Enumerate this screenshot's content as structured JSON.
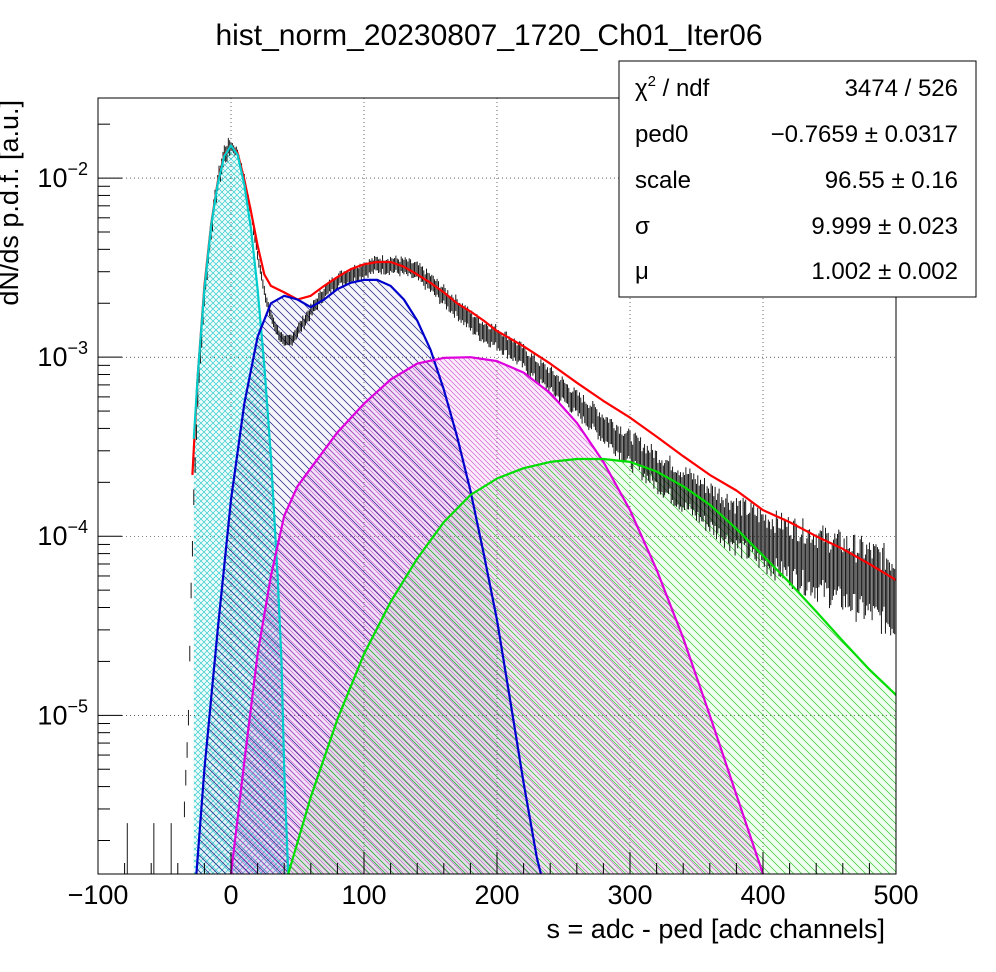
{
  "chart_data": {
    "type": "line",
    "title": "hist_norm_20230807_1720_Ch01_Iter06",
    "xlabel": "s = adc - ped [adc channels]",
    "ylabel": "dN/ds p.d.f. [a.u.]",
    "x_scale": "linear",
    "y_scale": "log",
    "xlim": [
      -100,
      500
    ],
    "ylim": [
      1.3e-06,
      0.028
    ],
    "grid": true,
    "x_ticks": [
      "−100",
      "0",
      "100",
      "200",
      "300",
      "400",
      "500"
    ],
    "y_ticks": [
      {
        "base": "10",
        "exp": "−5"
      },
      {
        "base": "10",
        "exp": "−4"
      },
      {
        "base": "10",
        "exp": "−3"
      },
      {
        "base": "10",
        "exp": "−2"
      }
    ],
    "stats_box": {
      "placement": "top-right",
      "rows": [
        {
          "label": "χ",
          "label_sup": "2",
          "label_tail": " / ndf",
          "value": "3474 / 526"
        },
        {
          "label": "ped0",
          "label_sup": "",
          "label_tail": "",
          "value": "−0.7659 ± 0.0317"
        },
        {
          "label": "scale",
          "label_sup": "",
          "label_tail": "",
          "value": "96.55 ± 0.16"
        },
        {
          "label": "σ",
          "label_sup": "",
          "label_tail": "",
          "value": "9.999 ± 0.023"
        },
        {
          "label": "μ",
          "label_sup": "",
          "label_tail": "",
          "value": "1.002 ± 0.002"
        }
      ]
    },
    "histogram": {
      "color": "#000000",
      "points": [
        [
          -35,
          3e-06
        ],
        [
          -32,
          1e-05
        ],
        [
          -30,
          5e-05
        ],
        [
          -28,
          0.00016
        ],
        [
          -25,
          0.0006
        ],
        [
          -20,
          0.0022
        ],
        [
          -15,
          0.0052
        ],
        [
          -10,
          0.0095
        ],
        [
          -5,
          0.0136
        ],
        [
          0,
          0.0152
        ],
        [
          5,
          0.0138
        ],
        [
          10,
          0.0098
        ],
        [
          15,
          0.0064
        ],
        [
          20,
          0.0038
        ],
        [
          25,
          0.0023
        ],
        [
          30,
          0.0017
        ],
        [
          35,
          0.0014
        ],
        [
          40,
          0.0012
        ],
        [
          45,
          0.00125
        ],
        [
          50,
          0.0014
        ],
        [
          60,
          0.0018
        ],
        [
          70,
          0.0023
        ],
        [
          80,
          0.0027
        ],
        [
          90,
          0.0029
        ],
        [
          100,
          0.0031
        ],
        [
          110,
          0.0033
        ],
        [
          120,
          0.0033
        ],
        [
          130,
          0.0032
        ],
        [
          140,
          0.003
        ],
        [
          150,
          0.0026
        ],
        [
          160,
          0.0022
        ],
        [
          170,
          0.0019
        ],
        [
          180,
          0.0016
        ],
        [
          190,
          0.0014
        ],
        [
          200,
          0.0013
        ],
        [
          210,
          0.00115
        ],
        [
          220,
          0.001
        ],
        [
          230,
          0.00085
        ],
        [
          240,
          0.00075
        ],
        [
          250,
          0.00065
        ],
        [
          260,
          0.00055
        ],
        [
          270,
          0.00048
        ],
        [
          280,
          0.00041
        ],
        [
          290,
          0.00036
        ],
        [
          300,
          0.00031
        ],
        [
          320,
          0.00024
        ],
        [
          340,
          0.00019
        ],
        [
          360,
          0.00015
        ],
        [
          380,
          0.00012
        ],
        [
          400,
          0.0001
        ],
        [
          420,
          8.8e-05
        ],
        [
          440,
          7.7e-05
        ],
        [
          460,
          6.8e-05
        ],
        [
          480,
          6e-05
        ],
        [
          500,
          5.2e-05
        ]
      ]
    },
    "series": [
      {
        "color": "#ff0000",
        "fill": false,
        "points": [
          [
            -29,
            0.00022
          ],
          [
            -25,
            0.0008
          ],
          [
            -20,
            0.0025
          ],
          [
            -15,
            0.0055
          ],
          [
            -10,
            0.0095
          ],
          [
            -5,
            0.0135
          ],
          [
            0,
            0.0152
          ],
          [
            5,
            0.0138
          ],
          [
            10,
            0.0098
          ],
          [
            15,
            0.0065
          ],
          [
            20,
            0.0042
          ],
          [
            25,
            0.0029
          ],
          [
            30,
            0.0025
          ],
          [
            40,
            0.0023
          ],
          [
            50,
            0.0021
          ],
          [
            60,
            0.0022
          ],
          [
            70,
            0.0025
          ],
          [
            80,
            0.0028
          ],
          [
            90,
            0.0031
          ],
          [
            100,
            0.0033
          ],
          [
            110,
            0.0034
          ],
          [
            120,
            0.0034
          ],
          [
            130,
            0.0032
          ],
          [
            140,
            0.0029
          ],
          [
            150,
            0.0026
          ],
          [
            160,
            0.0023
          ],
          [
            170,
            0.002
          ],
          [
            180,
            0.0018
          ],
          [
            190,
            0.0016
          ],
          [
            200,
            0.0014
          ],
          [
            220,
            0.00115
          ],
          [
            240,
            0.00092
          ],
          [
            260,
            0.00072
          ],
          [
            280,
            0.00057
          ],
          [
            300,
            0.00046
          ],
          [
            320,
            0.00036
          ],
          [
            340,
            0.00028
          ],
          [
            360,
            0.00022
          ],
          [
            380,
            0.00018
          ],
          [
            400,
            0.00014
          ],
          [
            420,
            0.00012
          ],
          [
            440,
            0.0001
          ],
          [
            460,
            8.5e-05
          ],
          [
            480,
            7e-05
          ],
          [
            500,
            5.7e-05
          ]
        ]
      },
      {
        "color": "#00cccc",
        "fill": true,
        "hatch": "cross",
        "points": [
          [
            -28,
            0.00035
          ],
          [
            -25,
            0.0008
          ],
          [
            -20,
            0.0024
          ],
          [
            -15,
            0.0054
          ],
          [
            -10,
            0.0093
          ],
          [
            -5,
            0.0133
          ],
          [
            0,
            0.0152
          ],
          [
            5,
            0.0135
          ],
          [
            10,
            0.0092
          ],
          [
            15,
            0.0052
          ],
          [
            20,
            0.0024
          ],
          [
            25,
            0.0009
          ],
          [
            30,
            0.00028
          ],
          [
            35,
            6e-05
          ],
          [
            38,
            2e-05
          ],
          [
            40,
            5e-06
          ],
          [
            43,
            1.3e-06
          ]
        ]
      },
      {
        "color": "#0000cc",
        "fill": true,
        "hatch": "back",
        "points": [
          [
            -26,
            1.3e-06
          ],
          [
            -20,
            5e-06
          ],
          [
            -10,
            3e-05
          ],
          [
            0,
            0.00016
          ],
          [
            10,
            0.00055
          ],
          [
            20,
            0.0013
          ],
          [
            30,
            0.002
          ],
          [
            40,
            0.0022
          ],
          [
            50,
            0.0021
          ],
          [
            60,
            0.0019
          ],
          [
            70,
            0.0021
          ],
          [
            80,
            0.0024
          ],
          [
            90,
            0.0026
          ],
          [
            100,
            0.0027
          ],
          [
            110,
            0.0027
          ],
          [
            120,
            0.0025
          ],
          [
            130,
            0.0021
          ],
          [
            140,
            0.0016
          ],
          [
            150,
            0.0011
          ],
          [
            160,
            0.00066
          ],
          [
            170,
            0.00036
          ],
          [
            180,
            0.00018
          ],
          [
            190,
            8e-05
          ],
          [
            200,
            3.4e-05
          ],
          [
            210,
            1.2e-05
          ],
          [
            220,
            4.2e-06
          ],
          [
            230,
            1.6e-06
          ],
          [
            233,
            1.3e-06
          ]
        ]
      },
      {
        "color": "#dd00dd",
        "fill": true,
        "hatch": "back-dense",
        "points": [
          [
            0,
            1.3e-06
          ],
          [
            10,
            5.5e-06
          ],
          [
            20,
            2.2e-05
          ],
          [
            30,
            6e-05
          ],
          [
            40,
            0.00013
          ],
          [
            50,
            0.00019
          ],
          [
            60,
            0.00024
          ],
          [
            80,
            0.00038
          ],
          [
            100,
            0.00055
          ],
          [
            120,
            0.00075
          ],
          [
            140,
            0.00092
          ],
          [
            160,
            0.00099
          ],
          [
            180,
            0.001
          ],
          [
            200,
            0.00095
          ],
          [
            220,
            0.00082
          ],
          [
            240,
            0.00063
          ],
          [
            260,
            0.00043
          ],
          [
            280,
            0.00026
          ],
          [
            300,
            0.00014
          ],
          [
            320,
            6.5e-05
          ],
          [
            340,
            2.7e-05
          ],
          [
            360,
            1e-05
          ],
          [
            380,
            3.6e-06
          ],
          [
            400,
            1.3e-06
          ]
        ]
      },
      {
        "color": "#00dd00",
        "fill": true,
        "hatch": "back",
        "points": [
          [
            43,
            1.3e-06
          ],
          [
            60,
            3.5e-06
          ],
          [
            80,
            9.5e-06
          ],
          [
            100,
            2.2e-05
          ],
          [
            120,
            4.3e-05
          ],
          [
            140,
            7.5e-05
          ],
          [
            160,
            0.00012
          ],
          [
            180,
            0.00017
          ],
          [
            200,
            0.00021
          ],
          [
            220,
            0.00024
          ],
          [
            240,
            0.00026
          ],
          [
            260,
            0.00027
          ],
          [
            280,
            0.00027
          ],
          [
            300,
            0.00026
          ],
          [
            320,
            0.00023
          ],
          [
            340,
            0.00019
          ],
          [
            360,
            0.00015
          ],
          [
            380,
            0.00011
          ],
          [
            400,
            7.8e-05
          ],
          [
            420,
            5.5e-05
          ],
          [
            440,
            3.8e-05
          ],
          [
            460,
            2.6e-05
          ],
          [
            480,
            1.8e-05
          ],
          [
            500,
            1.3e-05
          ]
        ]
      }
    ]
  }
}
